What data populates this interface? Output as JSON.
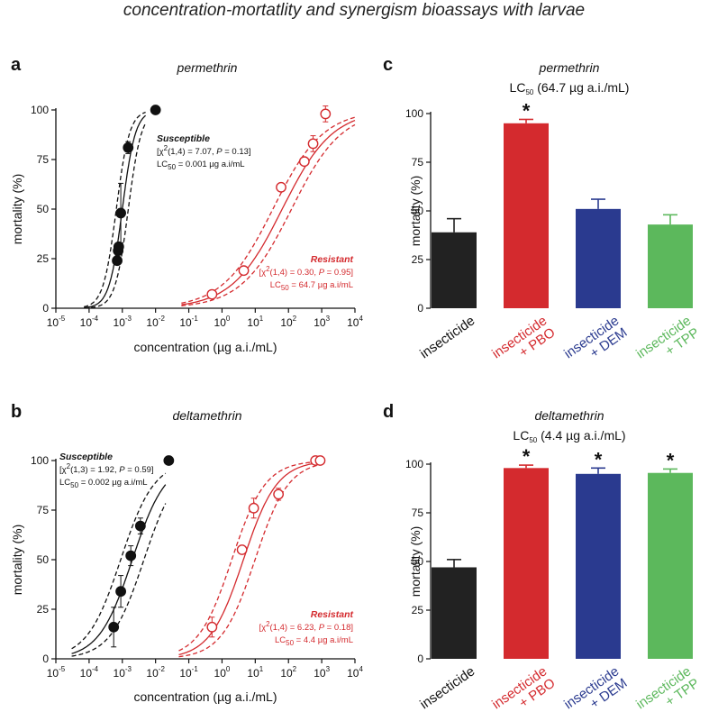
{
  "figure": {
    "title": "concentration-mortatlity and synergism bioassays with larvae"
  },
  "chart_data": [
    {
      "id": "a",
      "letter": "a",
      "type": "scatter",
      "title": "permethrin",
      "xlabel": "concentration (µg a.i./mL)",
      "ylabel": "mortality (%)",
      "xscale": "log",
      "xlim_exp": [
        -5,
        4
      ],
      "ylim": [
        0,
        100
      ],
      "yticks": [
        0,
        25,
        50,
        75,
        100
      ],
      "series": [
        {
          "name": "Susceptible",
          "color": "#111111",
          "marker": "filled",
          "points": [
            {
              "x": 0.0007,
              "y": 24,
              "err": 0
            },
            {
              "x": 0.00075,
              "y": 29,
              "err": 0
            },
            {
              "x": 0.00078,
              "y": 31,
              "err": 0
            },
            {
              "x": 0.0009,
              "y": 48,
              "err": 15
            },
            {
              "x": 0.0015,
              "y": 81,
              "err": 3
            },
            {
              "x": 0.01,
              "y": 100,
              "err": 0
            }
          ],
          "curve": {
            "lc50": 0.001,
            "slope": 2.3,
            "band": 0.18,
            "x_range": [
              7e-05,
              0.005
            ]
          },
          "annotation": {
            "heading": "Susceptible",
            "stat_pre": "[χ",
            "stat_sup": "2",
            "stat_mid": "(1,4) = 7.07, ",
            "stat_p": "P",
            "stat_post": " = 0.13]",
            "lc_pre": "LC",
            "lc_sub": "50",
            "lc_post": " = 0.001 µg a.i/mL",
            "anchor": "start"
          }
        },
        {
          "name": "Resistant",
          "color": "#d42a2e",
          "marker": "open",
          "points": [
            {
              "x": 0.5,
              "y": 7,
              "err": 0
            },
            {
              "x": 4.5,
              "y": 19,
              "err": 2
            },
            {
              "x": 60,
              "y": 61,
              "err": 0
            },
            {
              "x": 300,
              "y": 74,
              "err": 0
            },
            {
              "x": 550,
              "y": 83,
              "err": 4
            },
            {
              "x": 1300,
              "y": 98,
              "err": 4
            }
          ],
          "curve": {
            "lc50": 64.7,
            "slope": 0.6,
            "band": 0.28,
            "x_range": [
              0.06,
              10000
            ]
          },
          "annotation": {
            "heading": "Resistant",
            "stat_pre": "[χ",
            "stat_sup": "2",
            "stat_mid": "(1,4) = 0.30, ",
            "stat_p": "P",
            "stat_post": " = 0.95]",
            "lc_pre": "LC",
            "lc_sub": "50",
            "lc_post": " = 64.7 µg a.i/mL",
            "anchor": "end"
          }
        }
      ]
    },
    {
      "id": "b",
      "letter": "b",
      "type": "scatter",
      "title": "deltamethrin",
      "xlabel": "concentration (µg a.i./mL)",
      "ylabel": "mortality (%)",
      "xscale": "log",
      "xlim_exp": [
        -5,
        4
      ],
      "ylim": [
        0,
        100
      ],
      "yticks": [
        0,
        25,
        50,
        75,
        100
      ],
      "series": [
        {
          "name": "Susceptible",
          "color": "#111111",
          "marker": "filled",
          "points": [
            {
              "x": 0.00055,
              "y": 16,
              "err": 10
            },
            {
              "x": 0.0009,
              "y": 34,
              "err": 8
            },
            {
              "x": 0.0018,
              "y": 52,
              "err": 5
            },
            {
              "x": 0.0035,
              "y": 67,
              "err": 4
            },
            {
              "x": 0.025,
              "y": 100,
              "err": 0
            }
          ],
          "curve": {
            "lc50": 0.002,
            "slope": 0.9,
            "band": 0.35,
            "x_range": [
              3e-05,
              0.02
            ]
          },
          "annotation": {
            "heading": "Susceptible",
            "stat_pre": "[χ",
            "stat_sup": "2",
            "stat_mid": "(1,3) = 1.92, ",
            "stat_p": "P",
            "stat_post": " = 0.59]",
            "lc_pre": "LC",
            "lc_sub": "50",
            "lc_post": " = 0.002 µg a.i/mL",
            "anchor": "start"
          }
        },
        {
          "name": "Resistant",
          "color": "#d42a2e",
          "marker": "open",
          "points": [
            {
              "x": 0.5,
              "y": 16,
              "err": 5
            },
            {
              "x": 4,
              "y": 55,
              "err": 0
            },
            {
              "x": 9,
              "y": 76,
              "err": 5
            },
            {
              "x": 50,
              "y": 83,
              "err": 3
            },
            {
              "x": 650,
              "y": 100,
              "err": 0
            },
            {
              "x": 900,
              "y": 100,
              "err": 0
            }
          ],
          "curve": {
            "lc50": 4.4,
            "slope": 0.9,
            "band": 0.35,
            "x_range": [
              0.05,
              1000
            ]
          },
          "annotation": {
            "heading": "Resistant",
            "stat_pre": "[χ",
            "stat_sup": "2",
            "stat_mid": "(1,4) = 6.23, ",
            "stat_p": "P",
            "stat_post": " = 0.18]",
            "lc_pre": "LC",
            "lc_sub": "50",
            "lc_post": " = 4.4 µg a.i/mL",
            "anchor": "end"
          }
        }
      ]
    },
    {
      "id": "c",
      "letter": "c",
      "type": "bar",
      "title": "permethrin",
      "subtitle_pre": "LC",
      "subtitle_sub": "50",
      "subtitle_post": " (64.7 µg a.i./mL)",
      "ylabel": "mortality (%)",
      "ylim": [
        0,
        100
      ],
      "yticks": [
        0,
        25,
        50,
        75,
        100
      ],
      "categories": [
        {
          "line1": "insecticide",
          "line2": "",
          "color": "#222222",
          "value": 39,
          "err": 7,
          "sig": false
        },
        {
          "line1": "insecticide",
          "line2": "+ PBO",
          "color": "#d42a2e",
          "value": 95,
          "err": 2,
          "sig": true
        },
        {
          "line1": "insecticide",
          "line2": "+ DEM",
          "color": "#2a3a8f",
          "value": 51,
          "err": 5,
          "sig": false
        },
        {
          "line1": "insecticide",
          "line2": "+ TPP",
          "color": "#5cb85c",
          "value": 43,
          "err": 5,
          "sig": false
        }
      ],
      "sig_marker": "*"
    },
    {
      "id": "d",
      "letter": "d",
      "type": "bar",
      "title": "deltamethrin",
      "subtitle_pre": "LC",
      "subtitle_sub": "50",
      "subtitle_post": " (4.4 µg a.i./mL)",
      "ylabel": "mortality (%)",
      "ylim": [
        0,
        100
      ],
      "yticks": [
        0,
        25,
        50,
        75,
        100
      ],
      "categories": [
        {
          "line1": "insecticide",
          "line2": "",
          "color": "#222222",
          "value": 47,
          "err": 4,
          "sig": false
        },
        {
          "line1": "insecticide",
          "line2": "+ PBO",
          "color": "#d42a2e",
          "value": 98,
          "err": 1.5,
          "sig": true
        },
        {
          "line1": "insecticide",
          "line2": "+ DEM",
          "color": "#2a3a8f",
          "value": 95,
          "err": 3,
          "sig": true
        },
        {
          "line1": "insecticide",
          "line2": "+ TPP",
          "color": "#5cb85c",
          "value": 95.5,
          "err": 2,
          "sig": true
        }
      ],
      "sig_marker": "*"
    }
  ]
}
